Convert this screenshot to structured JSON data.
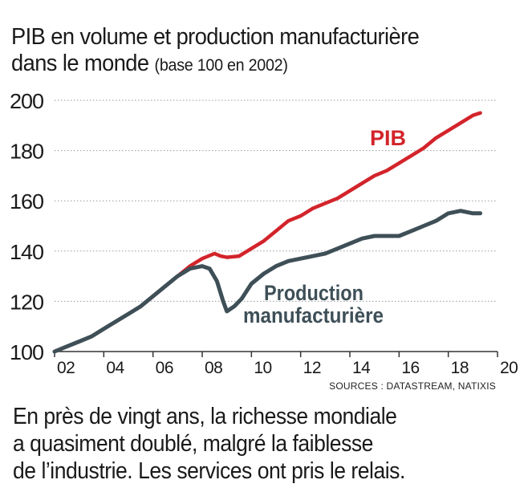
{
  "header": {
    "title_line1": "PIB en volume et production manufacturière",
    "title_line2": "dans le monde",
    "subtitle": "(base 100 en 2002)"
  },
  "footer": {
    "sources": "SOURCES : DATASTREAM, NATIXIS",
    "caption_lines": [
      "En près de vingt ans, la richesse mondiale",
      "a quasiment doublé, malgré la faiblesse",
      "de l’industrie. Les services ont pris le relais."
    ]
  },
  "colors": {
    "pib": "#d3242b",
    "manufacturing": "#3e4f57",
    "grid": "#9a9a9a",
    "axis": "#333333"
  },
  "chart_data": {
    "type": "line",
    "x_domain": [
      2002,
      2020
    ],
    "ylim": [
      100,
      200
    ],
    "y_ticks": [
      100,
      120,
      140,
      160,
      180,
      200
    ],
    "x_ticks": [
      2002,
      2004,
      2006,
      2008,
      2010,
      2012,
      2014,
      2016,
      2018,
      2020
    ],
    "x_tick_labels": [
      "02",
      "04",
      "06",
      "08",
      "10",
      "12",
      "14",
      "16",
      "18",
      "20"
    ],
    "grid": "horizontal dotted",
    "series": [
      {
        "name": "PIB",
        "color": "#d3242b",
        "points": [
          [
            2002.0,
            100
          ],
          [
            2002.5,
            102
          ],
          [
            2003.0,
            104
          ],
          [
            2003.5,
            106
          ],
          [
            2004.0,
            109
          ],
          [
            2004.5,
            112
          ],
          [
            2005.0,
            115
          ],
          [
            2005.5,
            118
          ],
          [
            2006.0,
            122
          ],
          [
            2006.5,
            126
          ],
          [
            2007.0,
            130
          ],
          [
            2007.5,
            134
          ],
          [
            2008.0,
            137
          ],
          [
            2008.5,
            139
          ],
          [
            2008.75,
            138
          ],
          [
            2009.0,
            137.5
          ],
          [
            2009.5,
            138
          ],
          [
            2010.0,
            141
          ],
          [
            2010.5,
            144
          ],
          [
            2011.0,
            148
          ],
          [
            2011.5,
            152
          ],
          [
            2012.0,
            154
          ],
          [
            2012.5,
            157
          ],
          [
            2013.0,
            159
          ],
          [
            2013.5,
            161
          ],
          [
            2014.0,
            164
          ],
          [
            2014.5,
            167
          ],
          [
            2015.0,
            170
          ],
          [
            2015.5,
            172
          ],
          [
            2016.0,
            175
          ],
          [
            2016.5,
            178
          ],
          [
            2017.0,
            181
          ],
          [
            2017.5,
            185
          ],
          [
            2018.0,
            188
          ],
          [
            2018.5,
            191
          ],
          [
            2019.0,
            194
          ],
          [
            2019.3,
            195
          ]
        ]
      },
      {
        "name": "Production manufacturière",
        "label_lines": [
          "Production",
          "manufacturière"
        ],
        "color": "#3e4f57",
        "points": [
          [
            2002.0,
            100
          ],
          [
            2002.5,
            102
          ],
          [
            2003.0,
            104
          ],
          [
            2003.5,
            106
          ],
          [
            2004.0,
            109
          ],
          [
            2004.5,
            112
          ],
          [
            2005.0,
            115
          ],
          [
            2005.5,
            118
          ],
          [
            2006.0,
            122
          ],
          [
            2006.5,
            126
          ],
          [
            2007.0,
            130
          ],
          [
            2007.5,
            133
          ],
          [
            2008.0,
            134
          ],
          [
            2008.3,
            133
          ],
          [
            2008.6,
            128
          ],
          [
            2008.85,
            120
          ],
          [
            2009.0,
            116
          ],
          [
            2009.3,
            118
          ],
          [
            2009.6,
            121
          ],
          [
            2010.0,
            127
          ],
          [
            2010.5,
            131
          ],
          [
            2011.0,
            134
          ],
          [
            2011.5,
            136
          ],
          [
            2012.0,
            137
          ],
          [
            2012.5,
            138
          ],
          [
            2013.0,
            139
          ],
          [
            2013.5,
            141
          ],
          [
            2014.0,
            143
          ],
          [
            2014.5,
            145
          ],
          [
            2015.0,
            146
          ],
          [
            2015.5,
            146
          ],
          [
            2016.0,
            146
          ],
          [
            2016.5,
            148
          ],
          [
            2017.0,
            150
          ],
          [
            2017.5,
            152
          ],
          [
            2018.0,
            155
          ],
          [
            2018.5,
            156
          ],
          [
            2019.0,
            155
          ],
          [
            2019.3,
            155
          ]
        ]
      }
    ]
  }
}
